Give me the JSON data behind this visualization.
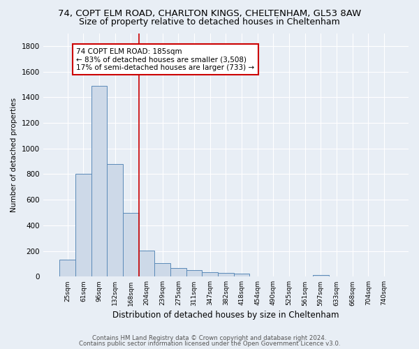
{
  "title1": "74, COPT ELM ROAD, CHARLTON KINGS, CHELTENHAM, GL53 8AW",
  "title2": "Size of property relative to detached houses in Cheltenham",
  "xlabel": "Distribution of detached houses by size in Cheltenham",
  "ylabel": "Number of detached properties",
  "bar_labels": [
    "25sqm",
    "61sqm",
    "96sqm",
    "132sqm",
    "168sqm",
    "204sqm",
    "239sqm",
    "275sqm",
    "311sqm",
    "347sqm",
    "382sqm",
    "418sqm",
    "454sqm",
    "490sqm",
    "525sqm",
    "561sqm",
    "597sqm",
    "633sqm",
    "668sqm",
    "704sqm",
    "740sqm"
  ],
  "bar_values": [
    130,
    800,
    1490,
    880,
    500,
    205,
    105,
    65,
    50,
    35,
    28,
    22,
    0,
    0,
    0,
    0,
    15,
    0,
    0,
    0,
    0
  ],
  "bar_color": "#cdd9e8",
  "bar_edge_color": "#5b8ab8",
  "vline_x": 4.5,
  "vline_color": "#cc0000",
  "annotation_line1": "74 COPT ELM ROAD: 185sqm",
  "annotation_line2": "← 83% of detached houses are smaller (3,508)",
  "annotation_line3": "17% of semi-detached houses are larger (733) →",
  "annotation_box_color": "white",
  "annotation_box_edge": "#cc0000",
  "ylim": [
    0,
    1900
  ],
  "yticks": [
    0,
    200,
    400,
    600,
    800,
    1000,
    1200,
    1400,
    1600,
    1800
  ],
  "background_color": "#e8eef5",
  "plot_background": "#e8eef5",
  "footer1": "Contains HM Land Registry data © Crown copyright and database right 2024.",
  "footer2": "Contains public sector information licensed under the Open Government Licence v3.0.",
  "title1_fontsize": 9.5,
  "title2_fontsize": 9,
  "annotation_fontsize": 7.5,
  "footer_fontsize": 6.2
}
